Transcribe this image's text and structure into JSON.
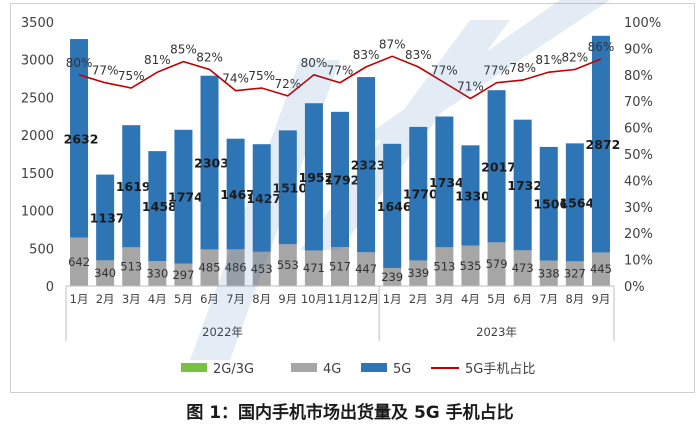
{
  "chart_data": {
    "type": "bar",
    "stacked": true,
    "title": "",
    "categories": [
      "1月",
      "2月",
      "3月",
      "4月",
      "5月",
      "6月",
      "7月",
      "8月",
      "9月",
      "10月",
      "11月",
      "12月",
      "1月",
      "2月",
      "3月",
      "4月",
      "5月",
      "6月",
      "7月",
      "8月",
      "9月"
    ],
    "year_groups": [
      {
        "label": "2022年",
        "count": 12
      },
      {
        "label": "2023年",
        "count": 9
      }
    ],
    "series": [
      {
        "name": "2G/3G",
        "color": "#7ac143",
        "values": [
          0,
          0,
          0,
          0,
          0,
          0,
          0,
          0,
          0,
          0,
          0,
          0,
          0,
          0,
          0,
          0,
          0,
          0,
          0,
          0,
          0
        ]
      },
      {
        "name": "4G",
        "color": "#a6a6a6",
        "values": [
          642,
          340,
          513,
          330,
          297,
          485,
          486,
          453,
          553,
          471,
          517,
          447,
          239,
          339,
          513,
          535,
          579,
          473,
          338,
          327,
          445
        ]
      },
      {
        "name": "5G",
        "color": "#2e75b6",
        "values": [
          2632,
          1137,
          1619,
          1458,
          1774,
          2303,
          1467,
          1427,
          1510,
          1952,
          1792,
          2323,
          1646,
          1770,
          1734,
          1330,
          2017,
          1732,
          1506,
          1564,
          2872
        ]
      }
    ],
    "line_series": {
      "name": "5G手机占比",
      "color": "#c00000",
      "values": [
        80,
        77,
        75,
        81,
        85,
        82,
        74,
        75,
        72,
        80,
        77,
        83,
        87,
        83,
        77,
        71,
        77,
        78,
        81,
        82,
        86
      ],
      "labels": [
        "80%",
        "77%",
        "75%",
        "81%",
        "85%",
        "82%",
        "74%",
        "75%",
        "72%",
        "80%",
        "77%",
        "83%",
        "87%",
        "83%",
        "77%",
        "71%",
        "77%",
        "78%",
        "81%",
        "82%",
        "86%"
      ]
    },
    "y_left": {
      "min": 0,
      "max": 3500,
      "ticks": [
        "0",
        "500",
        "1000",
        "1500",
        "2000",
        "2500",
        "3000",
        "3500"
      ]
    },
    "y_right": {
      "min": 0,
      "max": 100,
      "ticks": [
        "0%",
        "10%",
        "20%",
        "30%",
        "40%",
        "50%",
        "60%",
        "70%",
        "80%",
        "90%",
        "100%"
      ]
    },
    "legend_position": "bottom",
    "grid": false
  },
  "caption": "图 1：国内手机市场出货量及 5G 手机占比"
}
